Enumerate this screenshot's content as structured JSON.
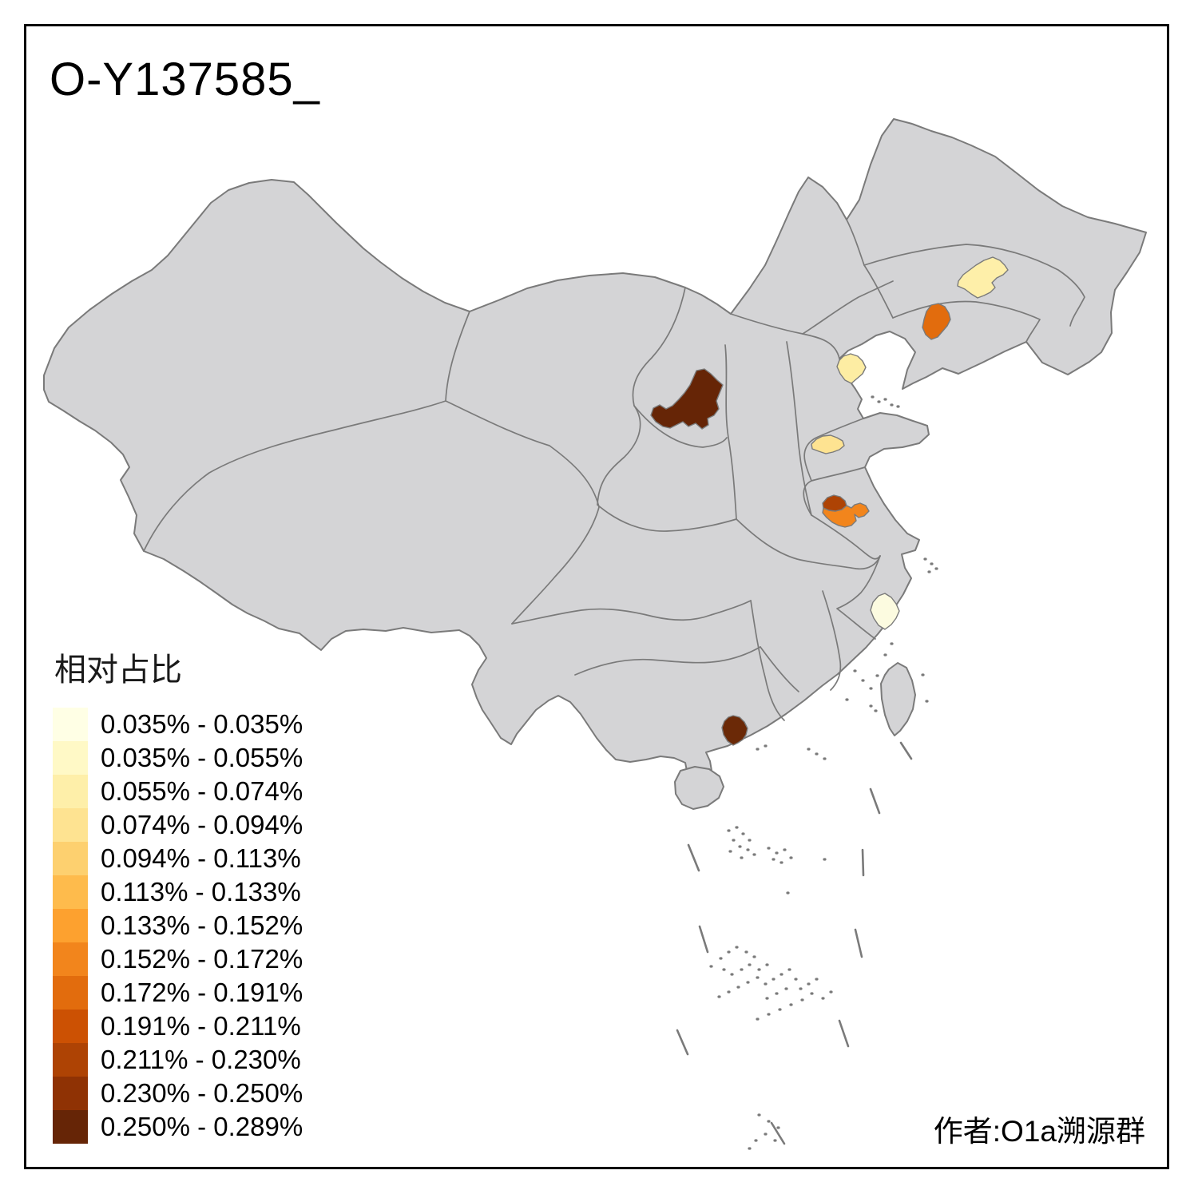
{
  "title": "O-Y137585_",
  "attribution": "作者:O1a溯源群",
  "legend": {
    "title": "相对占比",
    "items": [
      {
        "label": "0.035% - 0.035%",
        "color": "#FFFFE5"
      },
      {
        "label": "0.035% - 0.055%",
        "color": "#FFF9C6"
      },
      {
        "label": "0.055% - 0.074%",
        "color": "#FEEFA9"
      },
      {
        "label": "0.074% - 0.094%",
        "color": "#FEE391"
      },
      {
        "label": "0.094% - 0.113%",
        "color": "#FDD06F"
      },
      {
        "label": "0.113% - 0.133%",
        "color": "#FEBB4C"
      },
      {
        "label": "0.133% - 0.152%",
        "color": "#FDA12F"
      },
      {
        "label": "0.152% - 0.172%",
        "color": "#F2851C"
      },
      {
        "label": "0.172% - 0.191%",
        "color": "#E26C0D"
      },
      {
        "label": "0.191% - 0.211%",
        "color": "#CC5103"
      },
      {
        "label": "0.211% - 0.230%",
        "color": "#AE4304"
      },
      {
        "label": "0.230% - 0.250%",
        "color": "#8F3204"
      },
      {
        "label": "0.250% - 0.289%",
        "color": "#662506"
      }
    ]
  },
  "map": {
    "land_color": "#D4D4D6",
    "border_color": "#7A7A7A",
    "sea_color": "#FFFFFF",
    "frame_color": "#000000",
    "regions": [
      {
        "id": "ordos-region",
        "color": "#662506",
        "bin": "0.250% - 0.289%"
      },
      {
        "id": "guangdong-jiangmen",
        "color": "#6B2907",
        "bin": "0.250% - 0.289%"
      },
      {
        "id": "henan-dark-region",
        "color": "#AE4304",
        "bin": "0.211% - 0.230%"
      },
      {
        "id": "henan-orange-region",
        "color": "#F2851C",
        "bin": "0.152% - 0.172%"
      },
      {
        "id": "jilin-region",
        "color": "#FEEFA9",
        "bin": "0.055% - 0.074%"
      },
      {
        "id": "liaoning-region",
        "color": "#E26C0D",
        "bin": "0.172% - 0.191%"
      },
      {
        "id": "tianjin-region",
        "color": "#FDEDA3",
        "bin": "0.055% - 0.074%"
      },
      {
        "id": "shandong-region",
        "color": "#FEE391",
        "bin": "0.074% - 0.094%"
      },
      {
        "id": "zhejiang-region",
        "color": "#FCFBE0",
        "bin": "0.035% - 0.035%"
      }
    ]
  }
}
